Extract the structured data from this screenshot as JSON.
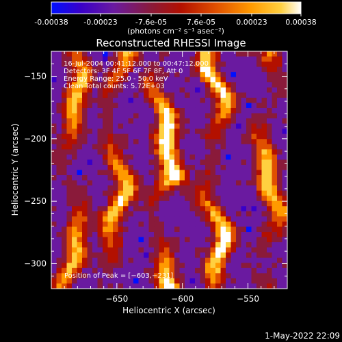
{
  "colorbar": {
    "tick_labels": [
      "-0.00038",
      "-0.00023",
      "-7.6e-05",
      "7.6e-05",
      "0.00023",
      "0.00038"
    ],
    "tick_values": [
      -0.00038,
      -0.00023,
      -7.6e-05,
      7.6e-05,
      0.00023,
      0.00038
    ],
    "unit_label": "(photons cm⁻² s⁻¹ asec⁻²)",
    "colors": [
      "#0010ff",
      "#3a00c8",
      "#6a1aa0",
      "#8a1a3a",
      "#b31000",
      "#e05000",
      "#ff9a00",
      "#ffd040",
      "#ffffff"
    ]
  },
  "chart_data": {
    "type": "heatmap",
    "title": "Reconstructed RHESSI Image",
    "xlabel": "Heliocentric X (arcsec)",
    "ylabel": "Heliocentric Y (arcsec)",
    "xlim": [
      -700,
      -520
    ],
    "ylim": [
      -320,
      -130
    ],
    "x_ticks": [
      -650,
      -600,
      -550
    ],
    "y_ticks": [
      -150,
      -200,
      -250,
      -300
    ],
    "x_tick_labels": [
      "−650",
      "−600",
      "−550"
    ],
    "y_tick_labels": [
      "−150",
      "−200",
      "−250",
      "−300"
    ],
    "annotations": [
      "16-Jul-2004 00:41:12.000 to 00:47:12.000",
      "Detectors: 3F 4F 5F 6F 7F 8F, Att 0",
      "Energy Range: 25.0 - 50.0 keV",
      "Clean    Total counts: 5.72E+03"
    ],
    "peak_label": "Position of Peak = [−603,−231]",
    "peak": [
      -603,
      -231
    ]
  },
  "footer": {
    "timestamp": "1-May-2022 22:09"
  }
}
